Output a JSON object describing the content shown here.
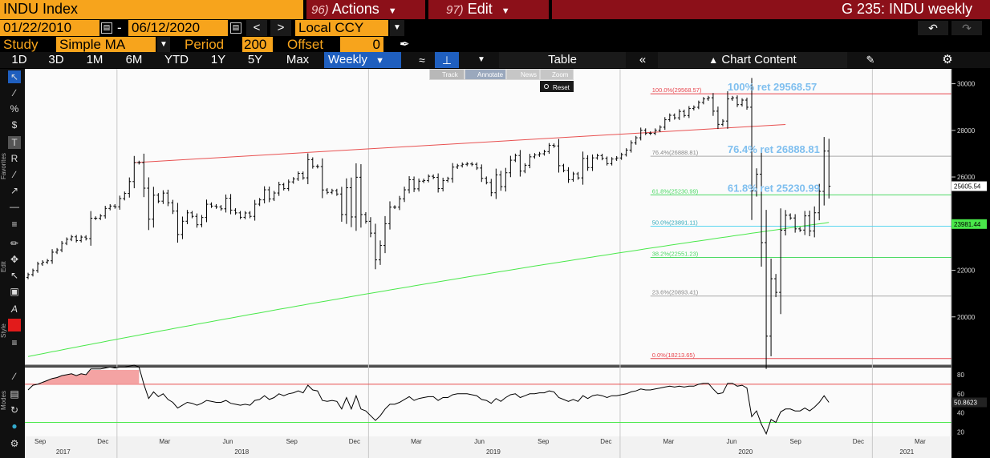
{
  "header": {
    "ticker": "INDU Index",
    "actions_num": "96)",
    "actions_label": "Actions",
    "edit_num": "97)",
    "edit_label": "Edit",
    "chart_id": "G 235: INDU weekly"
  },
  "dates": {
    "start": "01/22/2010",
    "dash": "-",
    "end": "06/12/2020",
    "prev": "<",
    "next": ">",
    "currency": "Local CCY"
  },
  "study": {
    "label": "Study",
    "value": "Simple MA",
    "period_label": "Period",
    "period": "200",
    "offset_label": "Offset",
    "offset": "0"
  },
  "ranges": [
    "1D",
    "3D",
    "1M",
    "6M",
    "YTD",
    "1Y",
    "5Y",
    "Max"
  ],
  "frequency": "Weekly",
  "table_label": "Table",
  "chart_content_label": "Chart Content",
  "mode_buttons": {
    "track": "Track",
    "annotate": "Annotate",
    "news": "News",
    "zoom": "Zoom",
    "reset": "Reset"
  },
  "side_tabs": {
    "favorites": "Favorites",
    "edit": "Edit",
    "style": "Style",
    "modes": "Modes"
  },
  "colors": {
    "amber": "#f7a41c",
    "header_red": "#8c1019",
    "selected_blue": "#1f5fbf",
    "fib_red": "#e8474f",
    "fib_green": "#4cd964",
    "fib_cyan": "#5ad6f0",
    "fib_gray": "#aaaaaa",
    "ma_green": "#49e84a",
    "trend_red": "#e85050",
    "label_blue": "#7fbfef"
  },
  "chart_data": [
    {
      "type": "line",
      "subtype": "ohlc",
      "x_axis": {
        "ticks": [
          "Sep",
          "Dec",
          "Mar",
          "Jun",
          "Sep",
          "Dec",
          "Mar",
          "Jun",
          "Sep",
          "Dec",
          "Mar",
          "Jun",
          "Sep",
          "Dec",
          "Mar"
        ],
        "years": [
          "2017",
          "2018",
          "2019",
          "2020",
          "2021"
        ]
      },
      "ylim": [
        18000,
        30500
      ],
      "y_ticks": [
        20000,
        22000,
        24000,
        26000,
        28000,
        30000
      ],
      "grid": false,
      "series": [
        {
          "name": "INDU weekly",
          "start": "2017-08-25",
          "end": "2020-06-12",
          "close": [
            21814,
            21988,
            22268,
            22349,
            22405,
            22775,
            22872,
            23157,
            23329,
            23434,
            23273,
            23422,
            23358,
            24232,
            24231,
            24329,
            24651,
            24754,
            24720,
            25075,
            25295,
            25803,
            26617,
            26616,
            25520,
            24190,
            25219,
            24964,
            25310,
            24895,
            24538,
            23534,
            24103,
            24462,
            24311,
            23952,
            24262,
            24831,
            24753,
            24715,
            24635,
            25090,
            24580,
            24461,
            24271,
            24456,
            24311,
            24834,
            25019,
            25451,
            25058,
            25313,
            25669,
            25502,
            25790,
            25916,
            26154,
            25964,
            26743,
            26458,
            26447,
            25444,
            25340,
            25413,
            25270,
            24389,
            25538,
            24286,
            25989,
            24389,
            24100,
            23593,
            22445,
            23062,
            23996,
            24707,
            24706,
            25063,
            25450,
            25883,
            25491,
            25820,
            25849,
            26031,
            25985,
            25502,
            25848,
            25928,
            26424,
            26485,
            26543,
            26559,
            26543,
            26384,
            25942,
            25764,
            25324,
            26090,
            25586,
            26182,
            26720,
            26922,
            26252,
            26503,
            26865,
            26944,
            26996,
            27088,
            27359,
            27332,
            26485,
            26282,
            25886,
            26135,
            25962,
            26797,
            26403,
            26820,
            26917,
            26798,
            26573,
            26770,
            26816,
            26958,
            27154,
            27462,
            27681,
            28005,
            27876,
            27875,
            28004,
            28135,
            28455,
            28645,
            28538,
            28811,
            28635,
            28935,
            28989,
            29196,
            29348,
            29398,
            28822,
            28256,
            28399,
            29348,
            29396,
            29102,
            29297,
            28992,
            25409,
            26122,
            23185,
            19173,
            21636,
            21052,
            23719,
            24360,
            24242,
            23775,
            23723,
            24331,
            23685,
            24465,
            25383,
            27111,
            25605
          ]
        },
        {
          "name": "Simple MA 200",
          "start_value": 18300,
          "end_value": 24050
        }
      ],
      "trendline": {
        "from": {
          "date": "2018-01-26",
          "value": 26617
        },
        "to": {
          "date": "2020-08-28",
          "value": 28250
        }
      },
      "fibonacci": {
        "high": 29568.57,
        "low": 18213.65,
        "levels": [
          {
            "label": "100.0%(29568.57)",
            "pct": "100.0%",
            "value": 29568.57
          },
          {
            "label": "76.4%(26888.81)",
            "pct": "76.4%",
            "value": 26888.81
          },
          {
            "label": "61.8%(25230.99)",
            "pct": "61.8%",
            "value": 25230.99
          },
          {
            "label": "50.0%(23891.11)",
            "pct": "50.0%",
            "value": 23891.11
          },
          {
            "label": "38.2%(22551.23)",
            "pct": "38.2%",
            "value": 22551.23
          },
          {
            "label": "23.6%(20893.41)",
            "pct": "23.6%",
            "value": 20893.41
          },
          {
            "label": "0.0%(18213.65)",
            "pct": "0.0%",
            "value": 18213.65
          }
        ]
      },
      "annotations": [
        {
          "text": "100% ret 29568.57",
          "value": 29568.57
        },
        {
          "text": "76.4% ret 26888.81",
          "value": 26888.81
        },
        {
          "text": "61.8% ret 25230.99",
          "value": 25230.99
        }
      ],
      "last_price_tags": [
        {
          "text": "25605.54",
          "value": 25605.54
        },
        {
          "text": "23981.44",
          "value": 23981.44
        }
      ]
    },
    {
      "type": "line",
      "subtype": "rsi",
      "ylim": [
        17,
        85
      ],
      "y_ticks": [
        20,
        40,
        60,
        80
      ],
      "overbought": 70,
      "oversold": 30,
      "last_value_tag": "50.8623",
      "series": [
        {
          "name": "RSI",
          "values": [
            64,
            69,
            70,
            72,
            74,
            76,
            77,
            79,
            80,
            81,
            79,
            81,
            80,
            86,
            86,
            86,
            87,
            88,
            87,
            88,
            88,
            89,
            90,
            88,
            70,
            55,
            62,
            57,
            60,
            54,
            51,
            45,
            48,
            51,
            50,
            48,
            50,
            53,
            52,
            51,
            51,
            53,
            50,
            49,
            48,
            49,
            48,
            53,
            54,
            58,
            54,
            56,
            60,
            58,
            60,
            61,
            63,
            61,
            69,
            64,
            63,
            53,
            52,
            53,
            52,
            44,
            56,
            44,
            58,
            44,
            42,
            37,
            32,
            37,
            44,
            49,
            49,
            51,
            54,
            57,
            53,
            55,
            56,
            57,
            57,
            53,
            56,
            56,
            59,
            60,
            60,
            60,
            59,
            58,
            54,
            53,
            50,
            55,
            52,
            56,
            59,
            60,
            56,
            58,
            60,
            60,
            61,
            61,
            63,
            62,
            56,
            54,
            52,
            54,
            52,
            58,
            55,
            58,
            59,
            58,
            56,
            58,
            58,
            59,
            60,
            62,
            63,
            65,
            64,
            64,
            65,
            66,
            67,
            68,
            67,
            68,
            67,
            68,
            68,
            70,
            71,
            71,
            65,
            60,
            61,
            71,
            71,
            68,
            69,
            66,
            36,
            42,
            28,
            18,
            33,
            30,
            41,
            44,
            44,
            42,
            42,
            45,
            42,
            46,
            51,
            58,
            51
          ]
        }
      ]
    }
  ]
}
